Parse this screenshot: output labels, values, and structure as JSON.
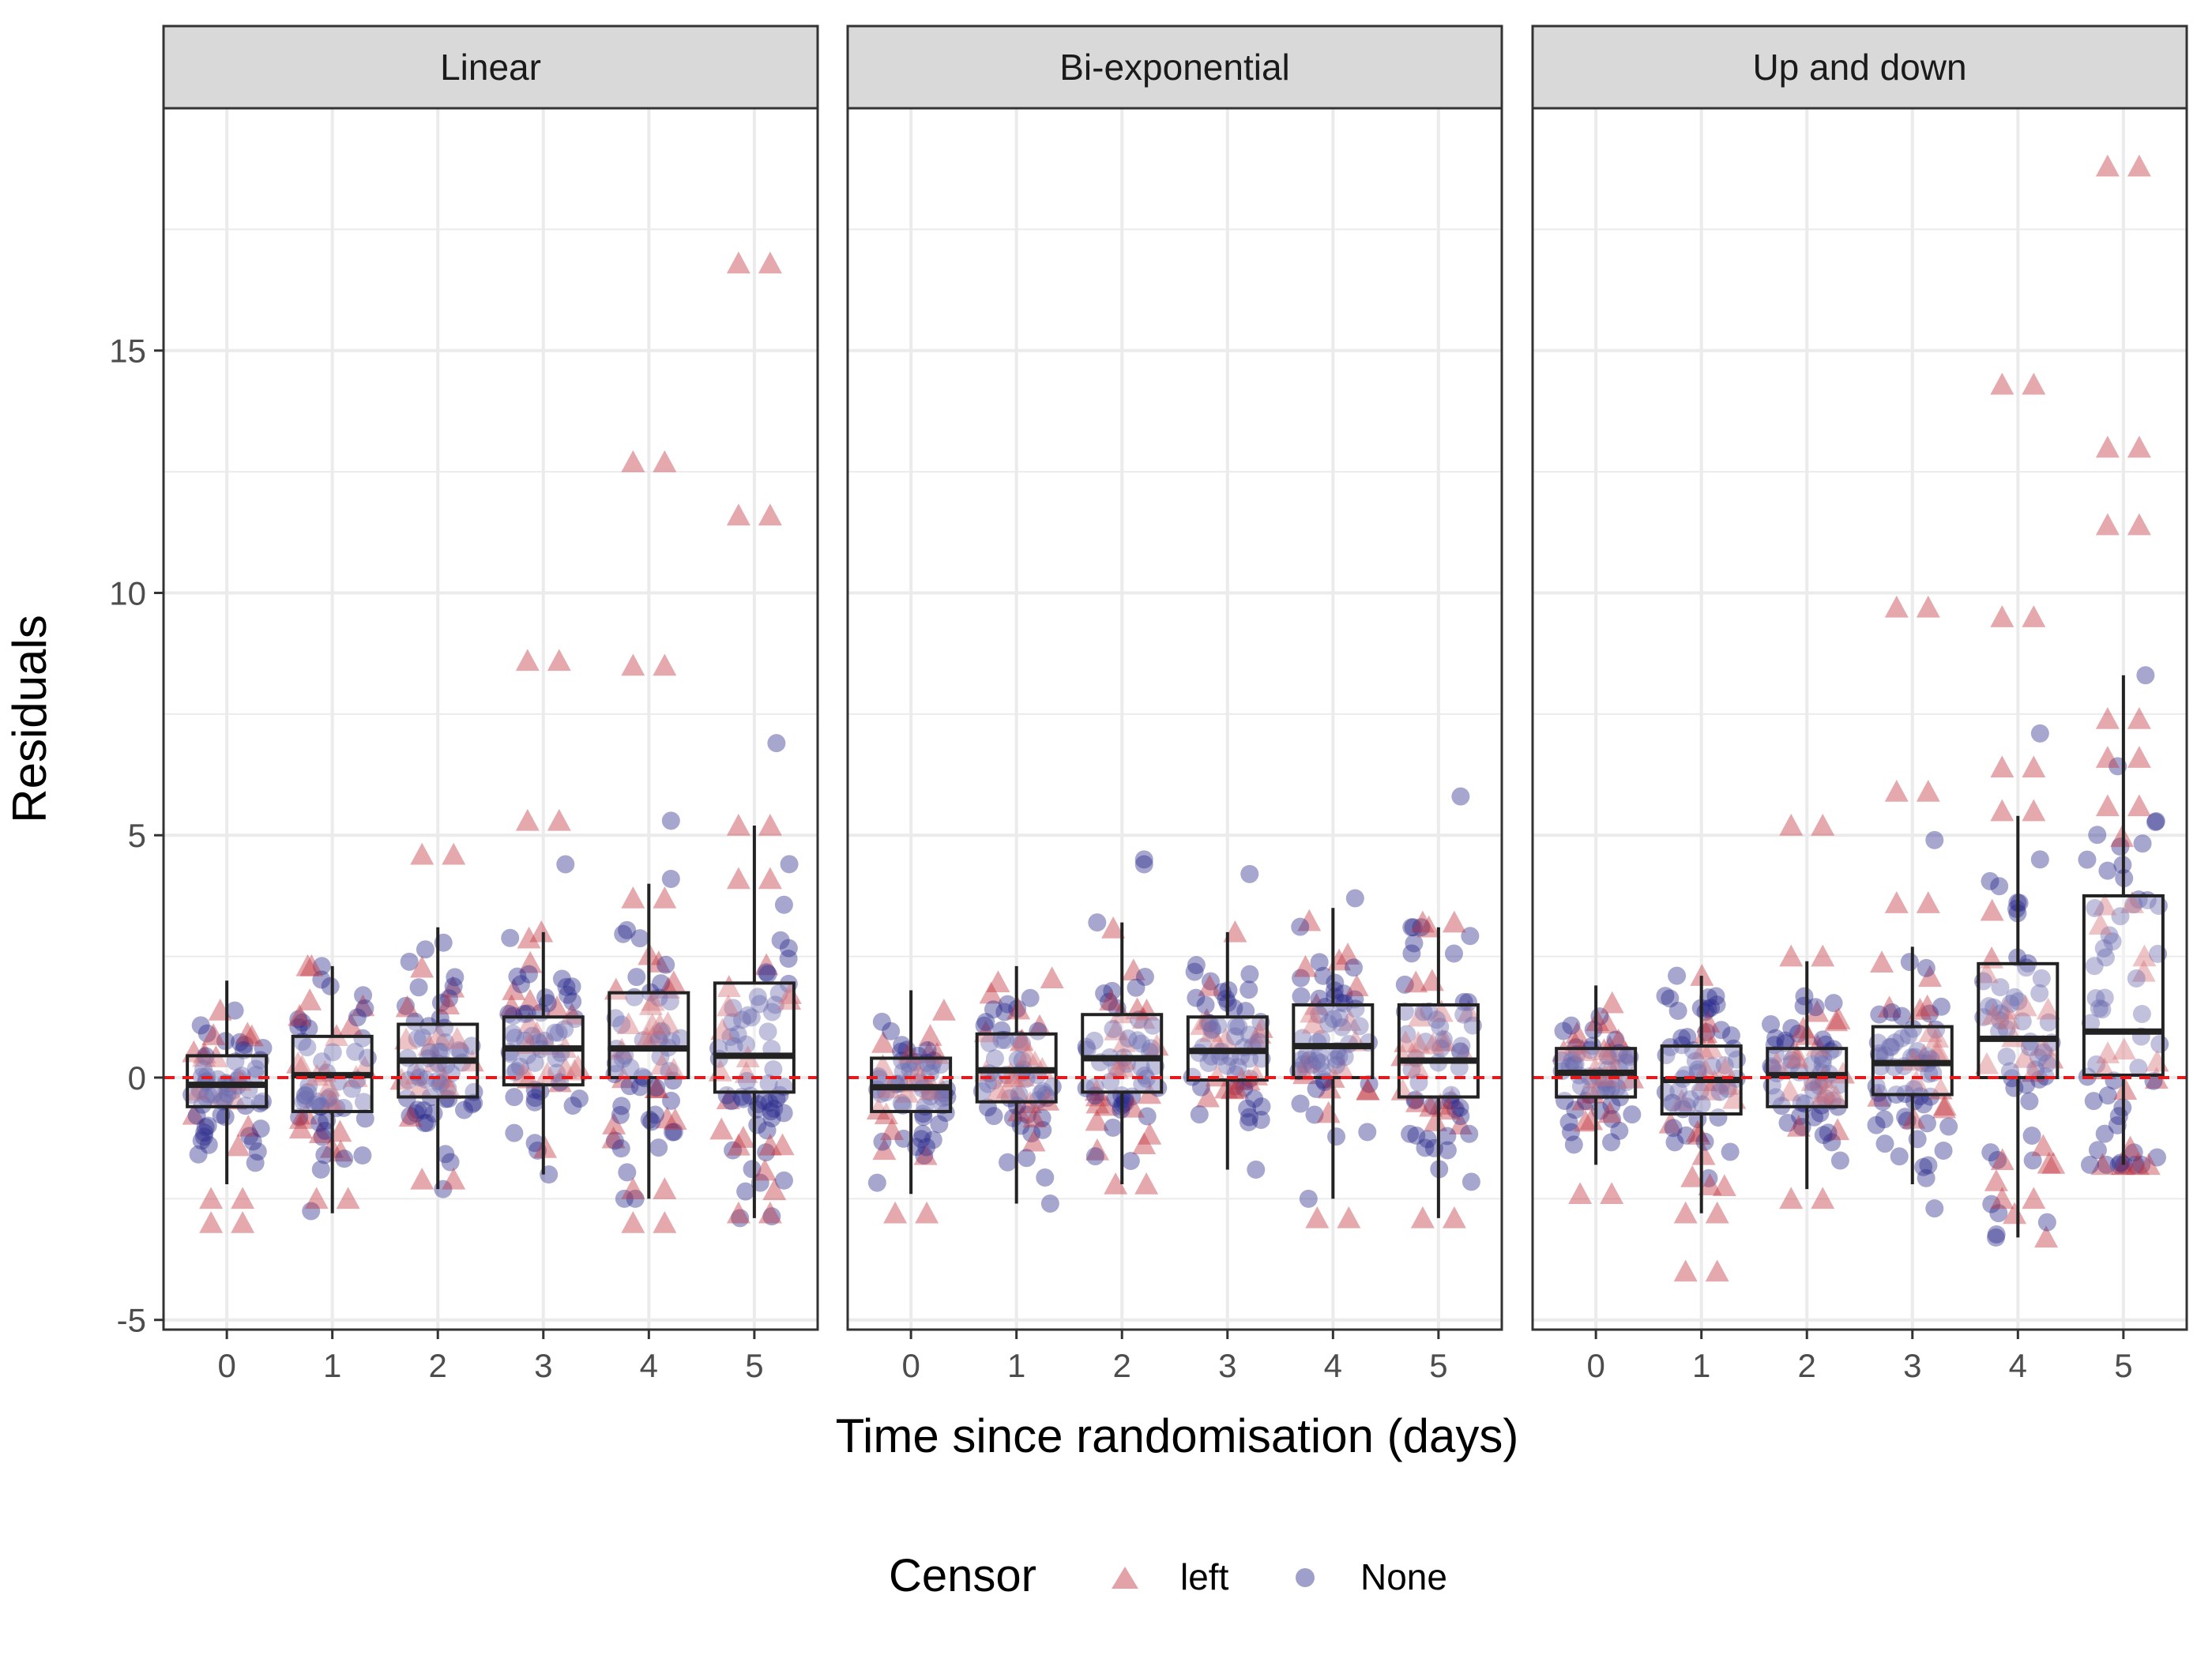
{
  "chart_data": {
    "type": "boxplot",
    "title": "",
    "xlabel": "Time since randomisation (days)",
    "ylabel": "Residuals",
    "ylim": [
      -5,
      20
    ],
    "y_ticks": [
      -5,
      0,
      5,
      10,
      15
    ],
    "x_ticks": [
      0,
      1,
      2,
      3,
      4,
      5
    ],
    "reference_line": {
      "y": 0,
      "color": "#e41a1c",
      "style": "dashed"
    },
    "legend": {
      "title": "Censor",
      "position": "bottom",
      "entries": [
        {
          "label": "left",
          "shape": "triangle",
          "color": "#c44e52"
        },
        {
          "label": "None",
          "shape": "circle",
          "color": "#6b6bb8"
        }
      ]
    },
    "colors": {
      "left": "#c0313b",
      "None": "#2a2a8c",
      "box": "#222222",
      "ref_line": "#e41a1c"
    },
    "panels": [
      {
        "name": "Linear",
        "boxes": [
          {
            "x": 0,
            "q1": -0.6,
            "median": -0.15,
            "q3": 0.45,
            "whisker_low": -2.2,
            "whisker_high": 2.0
          },
          {
            "x": 1,
            "q1": -0.7,
            "median": 0.05,
            "q3": 0.85,
            "whisker_low": -2.8,
            "whisker_high": 2.3
          },
          {
            "x": 2,
            "q1": -0.4,
            "median": 0.35,
            "q3": 1.1,
            "whisker_low": -2.3,
            "whisker_high": 3.1
          },
          {
            "x": 3,
            "q1": -0.15,
            "median": 0.6,
            "q3": 1.25,
            "whisker_low": -2.0,
            "whisker_high": 3.0
          },
          {
            "x": 4,
            "q1": 0.0,
            "median": 0.6,
            "q3": 1.75,
            "whisker_low": -2.5,
            "whisker_high": 4.0
          },
          {
            "x": 5,
            "q1": -0.3,
            "median": 0.45,
            "q3": 1.95,
            "whisker_low": -2.9,
            "whisker_high": 5.2
          }
        ],
        "left_outliers": [
          {
            "x": 0,
            "y": -2.5
          },
          {
            "x": 0,
            "y": -3.0
          },
          {
            "x": 1,
            "y": -2.5
          },
          {
            "x": 2,
            "y": 4.6
          },
          {
            "x": 2,
            "y": -2.1
          },
          {
            "x": 3,
            "y": 8.6
          },
          {
            "x": 3,
            "y": 5.3
          },
          {
            "x": 4,
            "y": 12.7
          },
          {
            "x": 4,
            "y": 8.5
          },
          {
            "x": 4,
            "y": 3.7
          },
          {
            "x": 4,
            "y": -3.0
          },
          {
            "x": 4,
            "y": -2.3
          },
          {
            "x": 5,
            "y": 16.8
          },
          {
            "x": 5,
            "y": 11.6
          },
          {
            "x": 5,
            "y": 5.2
          },
          {
            "x": 5,
            "y": 4.1
          },
          {
            "x": 5,
            "y": -2.8
          },
          {
            "x": 5,
            "y": -1.4
          }
        ],
        "none_outliers": [
          {
            "x": 3,
            "y": 4.4
          },
          {
            "x": 4,
            "y": 5.3
          },
          {
            "x": 4,
            "y": 4.1
          },
          {
            "x": 5,
            "y": 6.9
          }
        ]
      },
      {
        "name": "Bi-exponential",
        "boxes": [
          {
            "x": 0,
            "q1": -0.7,
            "median": -0.2,
            "q3": 0.4,
            "whisker_low": -2.4,
            "whisker_high": 1.8
          },
          {
            "x": 1,
            "q1": -0.5,
            "median": 0.15,
            "q3": 0.9,
            "whisker_low": -2.6,
            "whisker_high": 2.3
          },
          {
            "x": 2,
            "q1": -0.3,
            "median": 0.4,
            "q3": 1.3,
            "whisker_low": -2.2,
            "whisker_high": 3.2
          },
          {
            "x": 3,
            "q1": -0.05,
            "median": 0.55,
            "q3": 1.25,
            "whisker_low": -1.9,
            "whisker_high": 3.0
          },
          {
            "x": 4,
            "q1": 0.0,
            "median": 0.65,
            "q3": 1.5,
            "whisker_low": -2.5,
            "whisker_high": 3.5
          },
          {
            "x": 5,
            "q1": -0.4,
            "median": 0.35,
            "q3": 1.5,
            "whisker_low": -2.9,
            "whisker_high": 3.1
          }
        ],
        "left_outliers": [
          {
            "x": 0,
            "y": -2.8
          },
          {
            "x": 4,
            "y": -2.9
          },
          {
            "x": 5,
            "y": -2.9
          },
          {
            "x": 5,
            "y": 3.2
          }
        ],
        "none_outliers": [
          {
            "x": 2,
            "y": 4.4
          },
          {
            "x": 2,
            "y": 4.5
          },
          {
            "x": 3,
            "y": 4.2
          },
          {
            "x": 4,
            "y": 3.7
          },
          {
            "x": 5,
            "y": 5.8
          }
        ]
      },
      {
        "name": "Up and down",
        "boxes": [
          {
            "x": 0,
            "q1": -0.4,
            "median": 0.1,
            "q3": 0.6,
            "whisker_low": -1.8,
            "whisker_high": 1.9
          },
          {
            "x": 1,
            "q1": -0.75,
            "median": -0.05,
            "q3": 0.65,
            "whisker_low": -2.8,
            "whisker_high": 2.1
          },
          {
            "x": 2,
            "q1": -0.6,
            "median": 0.05,
            "q3": 0.6,
            "whisker_low": -2.3,
            "whisker_high": 2.4
          },
          {
            "x": 3,
            "q1": -0.35,
            "median": 0.3,
            "q3": 1.05,
            "whisker_low": -2.2,
            "whisker_high": 2.7
          },
          {
            "x": 4,
            "q1": 0.0,
            "median": 0.8,
            "q3": 2.35,
            "whisker_low": -3.3,
            "whisker_high": 5.4
          },
          {
            "x": 5,
            "q1": 0.05,
            "median": 0.95,
            "q3": 3.75,
            "whisker_low": -1.8,
            "whisker_high": 8.3
          }
        ],
        "left_outliers": [
          {
            "x": 0,
            "y": -2.4
          },
          {
            "x": 1,
            "y": -4.0
          },
          {
            "x": 1,
            "y": -2.8
          },
          {
            "x": 2,
            "y": 5.2
          },
          {
            "x": 2,
            "y": 2.5
          },
          {
            "x": 2,
            "y": -2.5
          },
          {
            "x": 3,
            "y": 9.7
          },
          {
            "x": 3,
            "y": 5.9
          },
          {
            "x": 3,
            "y": 3.6
          },
          {
            "x": 4,
            "y": 14.3
          },
          {
            "x": 4,
            "y": 9.5
          },
          {
            "x": 4,
            "y": 6.4
          },
          {
            "x": 4,
            "y": 5.5
          },
          {
            "x": 4,
            "y": -2.5
          },
          {
            "x": 5,
            "y": 18.8
          },
          {
            "x": 5,
            "y": 13.0
          },
          {
            "x": 5,
            "y": 11.4
          },
          {
            "x": 5,
            "y": 7.4
          },
          {
            "x": 5,
            "y": 6.6
          },
          {
            "x": 5,
            "y": 5.6
          }
        ],
        "none_outliers": [
          {
            "x": 3,
            "y": 4.9
          },
          {
            "x": 3,
            "y": -2.7
          },
          {
            "x": 4,
            "y": 7.1
          },
          {
            "x": 4,
            "y": 4.5
          },
          {
            "x": 5,
            "y": 8.3
          }
        ]
      }
    ]
  }
}
